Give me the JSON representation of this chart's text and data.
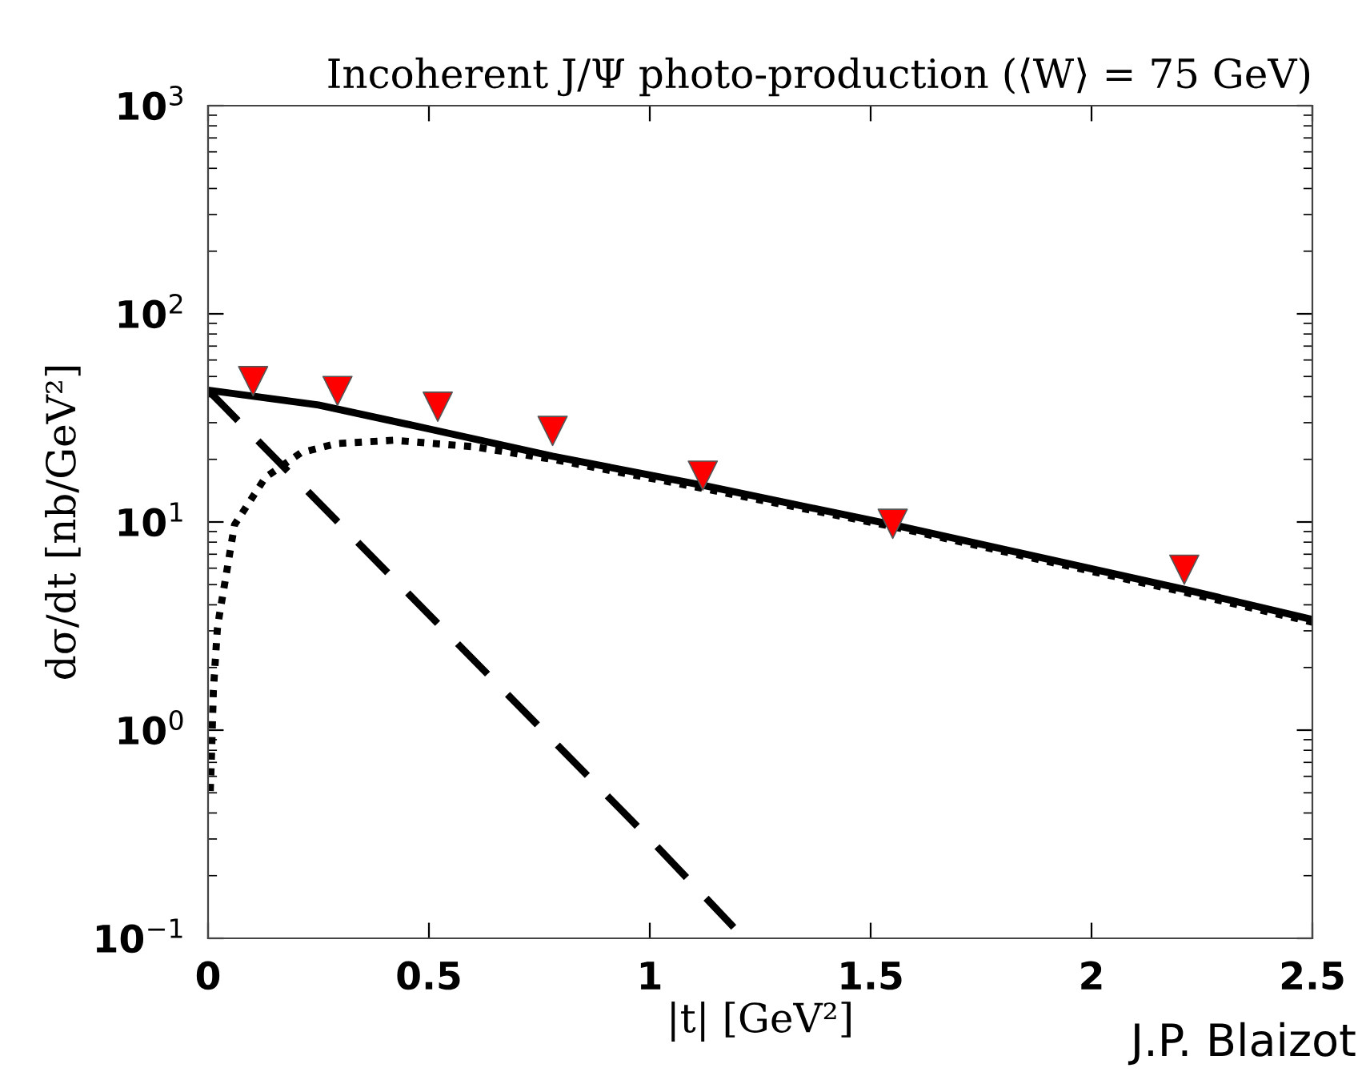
{
  "chart_data": {
    "type": "line",
    "title": "Incoherent J/Ψ photo-production (⟨W⟩ = 75 GeV)",
    "xlabel": "|t| [GeV²]",
    "ylabel": "dσ/dt [nb/GeV²]",
    "log": "y",
    "xlim": [
      0,
      2.5
    ],
    "xticks": [
      0,
      0.5,
      1,
      1.5,
      2,
      2.5
    ],
    "ylim": [
      0.1,
      1000
    ],
    "yticks": [
      {
        "value": 0.1,
        "label": "10$^{−1}$"
      },
      {
        "value": 1,
        "label": "10$^{0}$"
      },
      {
        "value": 10,
        "label": "10$^{1}$"
      },
      {
        "value": 100,
        "label": "10$^{2}$"
      },
      {
        "value": 1000,
        "label": "10$^{3}$"
      }
    ],
    "grid": false,
    "legend": false,
    "series": [
      {
        "color": "#000000",
        "line_style": "solid",
        "marker": "none",
        "x": [
          0,
          0.25,
          0.5,
          0.78,
          1.12,
          1.55,
          2.21,
          2.5
        ],
        "values": [
          43,
          36.5,
          28,
          20.7,
          15,
          9.7,
          4.75,
          3.4
        ]
      },
      {
        "color": "#000000",
        "line_style": "dashed",
        "marker": "none",
        "x": [
          0,
          1.0,
          1.19
        ],
        "values": [
          43,
          0.3,
          0.113
        ]
      },
      {
        "color": "#000000",
        "line_style": "dotted",
        "marker": "none",
        "x": [
          0.005,
          0.008,
          0.012,
          0.021,
          0.025,
          0.06,
          0.13,
          0.21,
          0.29,
          0.42,
          0.6,
          0.78,
          1.12,
          1.55,
          2.21,
          2.5
        ],
        "values": [
          0.51,
          0.79,
          1.55,
          3.05,
          3.5,
          9.7,
          16.4,
          21.5,
          23.8,
          24.7,
          23,
          20,
          14.5,
          9.5,
          4.6,
          3.3
        ]
      },
      {
        "type": "scatter",
        "color": "#ff0000",
        "marker": "triangle",
        "x": [
          0.102,
          0.293,
          0.52,
          0.78,
          1.12,
          1.55,
          2.21
        ],
        "values": [
          47.5,
          42.6,
          35.8,
          27.4,
          16.7,
          9.8,
          5.9
        ]
      }
    ],
    "annotations": [
      "J.P. Blaizot"
    ]
  }
}
